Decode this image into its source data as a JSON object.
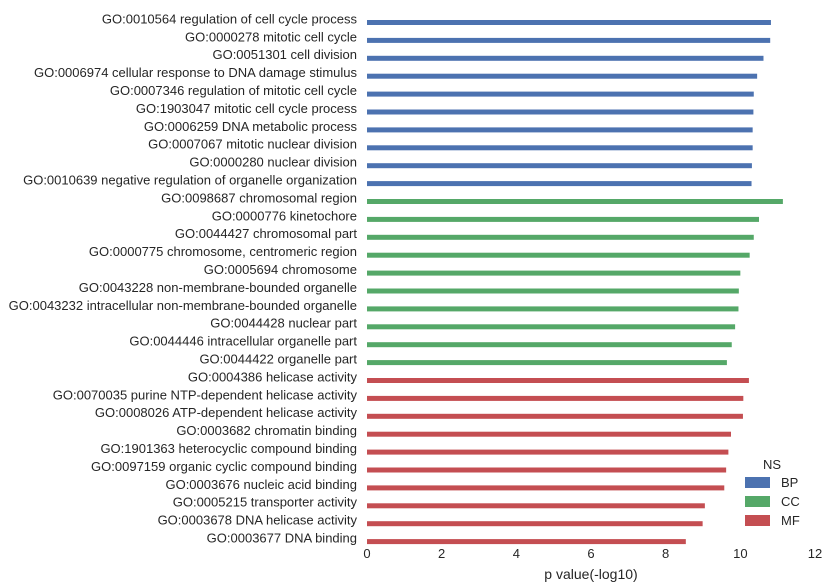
{
  "chart_data": {
    "type": "bar",
    "orientation": "horizontal",
    "xlabel": "p value(-log10)",
    "ylabel": "",
    "xlim": [
      0,
      12
    ],
    "xticks": [
      0,
      2,
      4,
      6,
      8,
      10,
      12
    ],
    "grid": false,
    "legend": {
      "title": "NS",
      "placement": "bottom-right"
    },
    "series": [
      {
        "name": "BP",
        "color": "#4c72b0",
        "categories": [
          "GO:0010564 regulation of cell cycle process",
          "GO:0000278 mitotic cell cycle",
          "GO:0051301 cell division",
          "GO:0006974 cellular response to DNA damage stimulus",
          "GO:0007346 regulation of mitotic cell cycle",
          "GO:1903047 mitotic cell cycle process",
          "GO:0006259 DNA metabolic process",
          "GO:0007067 mitotic nuclear division",
          "GO:0000280 nuclear division",
          "GO:0010639 negative regulation of organelle organization"
        ],
        "values": [
          10.82,
          10.8,
          10.62,
          10.45,
          10.36,
          10.35,
          10.33,
          10.33,
          10.31,
          10.3
        ]
      },
      {
        "name": "CC",
        "color": "#55a868",
        "categories": [
          "GO:0098687 chromosomal region",
          "GO:0000776 kinetochore",
          "GO:0044427 chromosomal part",
          "GO:0000775 chromosome, centromeric region",
          "GO:0005694 chromosome",
          "GO:0043228 non-membrane-bounded organelle",
          "GO:0043232 intracellular non-membrane-bounded organelle",
          "GO:0044428 nuclear part",
          "GO:0044446 intracellular organelle part",
          "GO:0044422 organelle part"
        ],
        "values": [
          11.14,
          10.5,
          10.36,
          10.25,
          10.0,
          9.96,
          9.95,
          9.86,
          9.77,
          9.64
        ]
      },
      {
        "name": "MF",
        "color": "#c44e52",
        "categories": [
          "GO:0004386 helicase activity",
          "GO:0070035 purine NTP-dependent helicase activity",
          "GO:0008026 ATP-dependent helicase activity",
          "GO:0003682 chromatin binding",
          "GO:1901363 heterocyclic compound binding",
          "GO:0097159 organic cyclic compound binding",
          "GO:0003676 nucleic acid binding",
          "GO:0005215 transporter activity",
          "GO:0003678 DNA helicase activity",
          "GO:0003677 DNA binding"
        ],
        "values": [
          10.23,
          10.08,
          10.07,
          9.75,
          9.68,
          9.62,
          9.57,
          9.05,
          8.99,
          8.54
        ]
      }
    ]
  }
}
